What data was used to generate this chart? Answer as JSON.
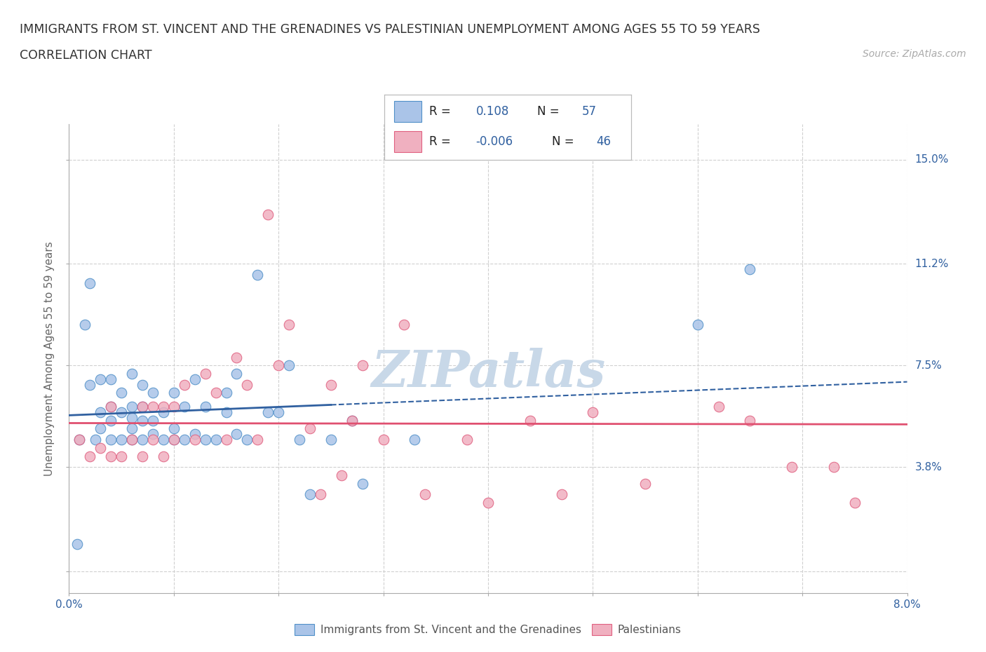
{
  "title_line1": "IMMIGRANTS FROM ST. VINCENT AND THE GRENADINES VS PALESTINIAN UNEMPLOYMENT AMONG AGES 55 TO 59 YEARS",
  "title_line2": "CORRELATION CHART",
  "source_text": "Source: ZipAtlas.com",
  "ylabel": "Unemployment Among Ages 55 to 59 years",
  "xlim": [
    0.0,
    0.08
  ],
  "ylim": [
    -0.008,
    0.163
  ],
  "xtick_positions": [
    0.0,
    0.01,
    0.02,
    0.03,
    0.04,
    0.05,
    0.06,
    0.07,
    0.08
  ],
  "xticklabels": [
    "0.0%",
    "",
    "",
    "",
    "",
    "",
    "",
    "",
    "8.0%"
  ],
  "ytick_positions": [
    0.0,
    0.038,
    0.075,
    0.112,
    0.15
  ],
  "yticklabels": [
    "",
    "3.8%",
    "7.5%",
    "11.2%",
    "15.0%"
  ],
  "grid_color": "#d0d0d0",
  "background_color": "#ffffff",
  "blue_scatter_color": "#aac4e8",
  "pink_scatter_color": "#f0b0c0",
  "blue_edge_color": "#5090c8",
  "pink_edge_color": "#e06080",
  "blue_line_color": "#3060a0",
  "pink_line_color": "#e05070",
  "watermark_text": "ZIPatlas",
  "watermark_color": "#c8d8e8",
  "legend_color1": "#aac4e8",
  "legend_color2": "#f0b0c0",
  "legend_text_color": "#3060a0",
  "scatter_label1": "Immigrants from St. Vincent and the Grenadines",
  "scatter_label2": "Palestinians",
  "blue_R": 0.108,
  "pink_R": -0.006,
  "blue_dots_x": [
    0.0008,
    0.001,
    0.0015,
    0.002,
    0.002,
    0.0025,
    0.003,
    0.003,
    0.003,
    0.004,
    0.004,
    0.004,
    0.004,
    0.005,
    0.005,
    0.005,
    0.006,
    0.006,
    0.006,
    0.006,
    0.006,
    0.007,
    0.007,
    0.007,
    0.007,
    0.008,
    0.008,
    0.008,
    0.009,
    0.009,
    0.01,
    0.01,
    0.01,
    0.011,
    0.011,
    0.012,
    0.012,
    0.013,
    0.013,
    0.014,
    0.015,
    0.015,
    0.016,
    0.016,
    0.017,
    0.018,
    0.019,
    0.02,
    0.021,
    0.022,
    0.023,
    0.025,
    0.027,
    0.028,
    0.033,
    0.06,
    0.065
  ],
  "blue_dots_y": [
    0.01,
    0.048,
    0.09,
    0.105,
    0.068,
    0.048,
    0.052,
    0.058,
    0.07,
    0.048,
    0.055,
    0.06,
    0.07,
    0.048,
    0.058,
    0.065,
    0.048,
    0.052,
    0.056,
    0.06,
    0.072,
    0.048,
    0.055,
    0.06,
    0.068,
    0.05,
    0.055,
    0.065,
    0.048,
    0.058,
    0.048,
    0.052,
    0.065,
    0.048,
    0.06,
    0.05,
    0.07,
    0.048,
    0.06,
    0.048,
    0.058,
    0.065,
    0.05,
    0.072,
    0.048,
    0.108,
    0.058,
    0.058,
    0.075,
    0.048,
    0.028,
    0.048,
    0.055,
    0.032,
    0.048,
    0.09,
    0.11
  ],
  "pink_dots_x": [
    0.001,
    0.002,
    0.003,
    0.004,
    0.004,
    0.005,
    0.006,
    0.007,
    0.007,
    0.008,
    0.008,
    0.009,
    0.009,
    0.01,
    0.01,
    0.011,
    0.012,
    0.013,
    0.014,
    0.015,
    0.016,
    0.017,
    0.018,
    0.019,
    0.02,
    0.021,
    0.023,
    0.024,
    0.025,
    0.026,
    0.027,
    0.028,
    0.03,
    0.032,
    0.034,
    0.038,
    0.04,
    0.044,
    0.047,
    0.05,
    0.055,
    0.062,
    0.065,
    0.069,
    0.073,
    0.075
  ],
  "pink_dots_y": [
    0.048,
    0.042,
    0.045,
    0.042,
    0.06,
    0.042,
    0.048,
    0.042,
    0.06,
    0.048,
    0.06,
    0.042,
    0.06,
    0.048,
    0.06,
    0.068,
    0.048,
    0.072,
    0.065,
    0.048,
    0.078,
    0.068,
    0.048,
    0.13,
    0.075,
    0.09,
    0.052,
    0.028,
    0.068,
    0.035,
    0.055,
    0.075,
    0.048,
    0.09,
    0.028,
    0.048,
    0.025,
    0.055,
    0.028,
    0.058,
    0.032,
    0.06,
    0.055,
    0.038,
    0.038,
    0.025
  ]
}
